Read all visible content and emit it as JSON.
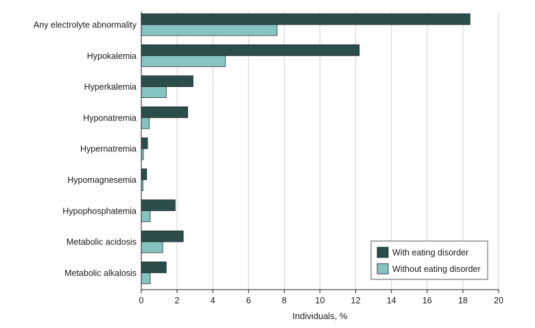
{
  "chart_data": {
    "type": "bar",
    "orientation": "horizontal",
    "categories": [
      "Any electrolyte abnormality",
      "Hypokalemia",
      "Hyperkalemia",
      "Hyponatremia",
      "Hypernatremia",
      "Hypomagnesemia",
      "Hypophosphatemia",
      "Metabolic acidosis",
      "Metabolic alkalosis"
    ],
    "series": [
      {
        "name": "With eating disorder",
        "color": "#2b4e4b",
        "values": [
          18.4,
          12.2,
          2.9,
          2.6,
          0.35,
          0.3,
          1.9,
          2.35,
          1.4
        ]
      },
      {
        "name": "Without eating disorder",
        "color": "#86c4c0",
        "values": [
          7.6,
          4.7,
          1.4,
          0.45,
          0.12,
          0.1,
          0.5,
          1.2,
          0.5
        ]
      }
    ],
    "xlabel": "Individuals, %",
    "xlim": [
      0,
      20
    ],
    "xticks": [
      0,
      2,
      4,
      6,
      8,
      10,
      12,
      14,
      16,
      18,
      20
    ],
    "grid": true,
    "legend_position": "bottom-right"
  }
}
